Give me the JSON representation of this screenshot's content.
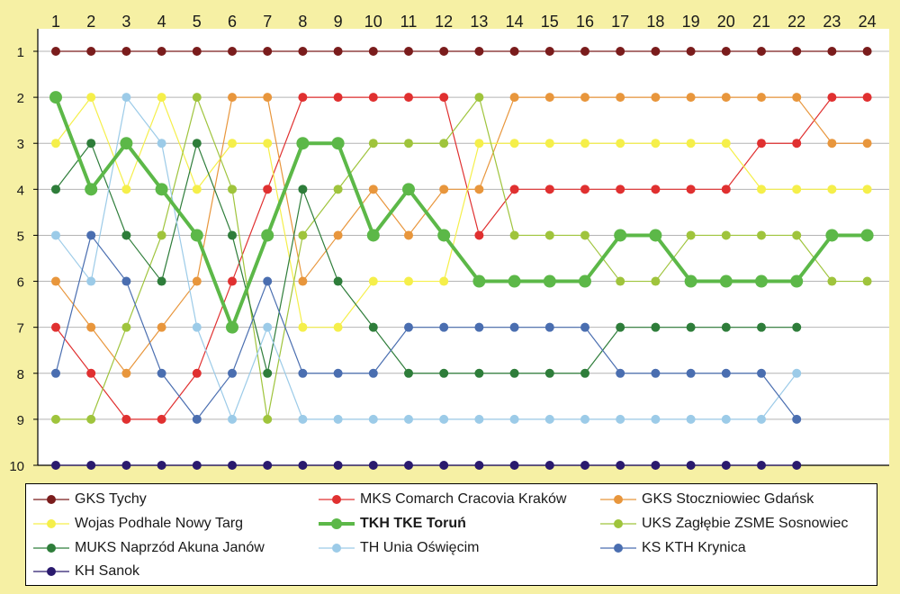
{
  "chart_data": {
    "type": "line",
    "x": [
      1,
      2,
      3,
      4,
      5,
      6,
      7,
      8,
      9,
      10,
      11,
      12,
      13,
      14,
      15,
      16,
      17,
      18,
      19,
      20,
      21,
      22,
      23,
      24
    ],
    "y_ticks": [
      1,
      2,
      3,
      4,
      5,
      6,
      7,
      8,
      9,
      10
    ],
    "ylim": [
      1,
      10
    ],
    "y_inverted": true,
    "grid": true,
    "legend_position": "bottom",
    "series": [
      {
        "name": "GKS Tychy",
        "color": "#7a1c1c",
        "values": [
          1,
          1,
          1,
          1,
          1,
          1,
          1,
          1,
          1,
          1,
          1,
          1,
          1,
          1,
          1,
          1,
          1,
          1,
          1,
          1,
          1,
          1,
          1,
          1
        ]
      },
      {
        "name": "MKS Comarch Cracovia Kraków",
        "color": "#e03030",
        "values": [
          7,
          8,
          9,
          9,
          8,
          6,
          4,
          2,
          2,
          2,
          2,
          2,
          5,
          4,
          4,
          4,
          4,
          4,
          4,
          4,
          3,
          3,
          2,
          2
        ]
      },
      {
        "name": "GKS Stoczniowiec Gdańsk",
        "color": "#e8963c",
        "values": [
          6,
          7,
          8,
          7,
          6,
          2,
          2,
          6,
          5,
          4,
          5,
          4,
          4,
          2,
          2,
          2,
          2,
          2,
          2,
          2,
          2,
          2,
          3,
          3
        ]
      },
      {
        "name": "Wojas Podhale Nowy Targ",
        "color": "#f5ef4a",
        "values": [
          3,
          2,
          4,
          2,
          4,
          3,
          3,
          7,
          7,
          6,
          6,
          6,
          3,
          3,
          3,
          3,
          3,
          3,
          3,
          3,
          4,
          4,
          4,
          4
        ]
      },
      {
        "name": "TKH TKE Toruń",
        "color": "#5cb848",
        "bold": true,
        "values": [
          2,
          4,
          3,
          4,
          5,
          7,
          5,
          3,
          3,
          5,
          4,
          5,
          6,
          6,
          6,
          6,
          5,
          5,
          6,
          6,
          6,
          6,
          5,
          5
        ]
      },
      {
        "name": "UKS Zagłębie ZSME Sosnowiec",
        "color": "#9fc43c",
        "values": [
          9,
          9,
          7,
          5,
          2,
          4,
          9,
          5,
          4,
          3,
          3,
          3,
          2,
          5,
          5,
          5,
          6,
          6,
          5,
          5,
          5,
          5,
          6,
          6
        ]
      },
      {
        "name": "MUKS Naprzód Akuna Janów",
        "color": "#2e7d3a",
        "values": [
          4,
          3,
          5,
          6,
          3,
          5,
          8,
          4,
          6,
          7,
          8,
          8,
          8,
          8,
          8,
          8,
          7,
          7,
          7,
          7,
          7,
          7,
          null,
          null
        ]
      },
      {
        "name": "TH Unia Oświęcim",
        "color": "#9ccbe8",
        "values": [
          5,
          6,
          2,
          3,
          7,
          9,
          7,
          9,
          9,
          9,
          9,
          9,
          9,
          9,
          9,
          9,
          9,
          9,
          9,
          9,
          9,
          8,
          null,
          null
        ]
      },
      {
        "name": "KS KTH Krynica",
        "color": "#4a6eb0",
        "values": [
          8,
          5,
          6,
          8,
          9,
          8,
          6,
          8,
          8,
          8,
          7,
          7,
          7,
          7,
          7,
          7,
          8,
          8,
          8,
          8,
          8,
          9,
          null,
          null
        ]
      },
      {
        "name": "KH Sanok",
        "color": "#2a1a6e",
        "values": [
          10,
          10,
          10,
          10,
          10,
          10,
          10,
          10,
          10,
          10,
          10,
          10,
          10,
          10,
          10,
          10,
          10,
          10,
          10,
          10,
          10,
          10,
          null,
          null
        ]
      }
    ]
  },
  "legend": {
    "items": [
      {
        "label": "GKS Tychy"
      },
      {
        "label": "MKS Comarch Cracovia Kraków"
      },
      {
        "label": "GKS Stoczniowiec Gdańsk"
      },
      {
        "label": "Wojas Podhale Nowy Targ"
      },
      {
        "label": "TKH TKE Toruń"
      },
      {
        "label": "UKS Zagłębie ZSME Sosnowiec"
      },
      {
        "label": "MUKS Naprzód Akuna Janów"
      },
      {
        "label": "TH Unia Oświęcim"
      },
      {
        "label": "KS KTH Krynica"
      },
      {
        "label": "KH Sanok"
      }
    ]
  }
}
